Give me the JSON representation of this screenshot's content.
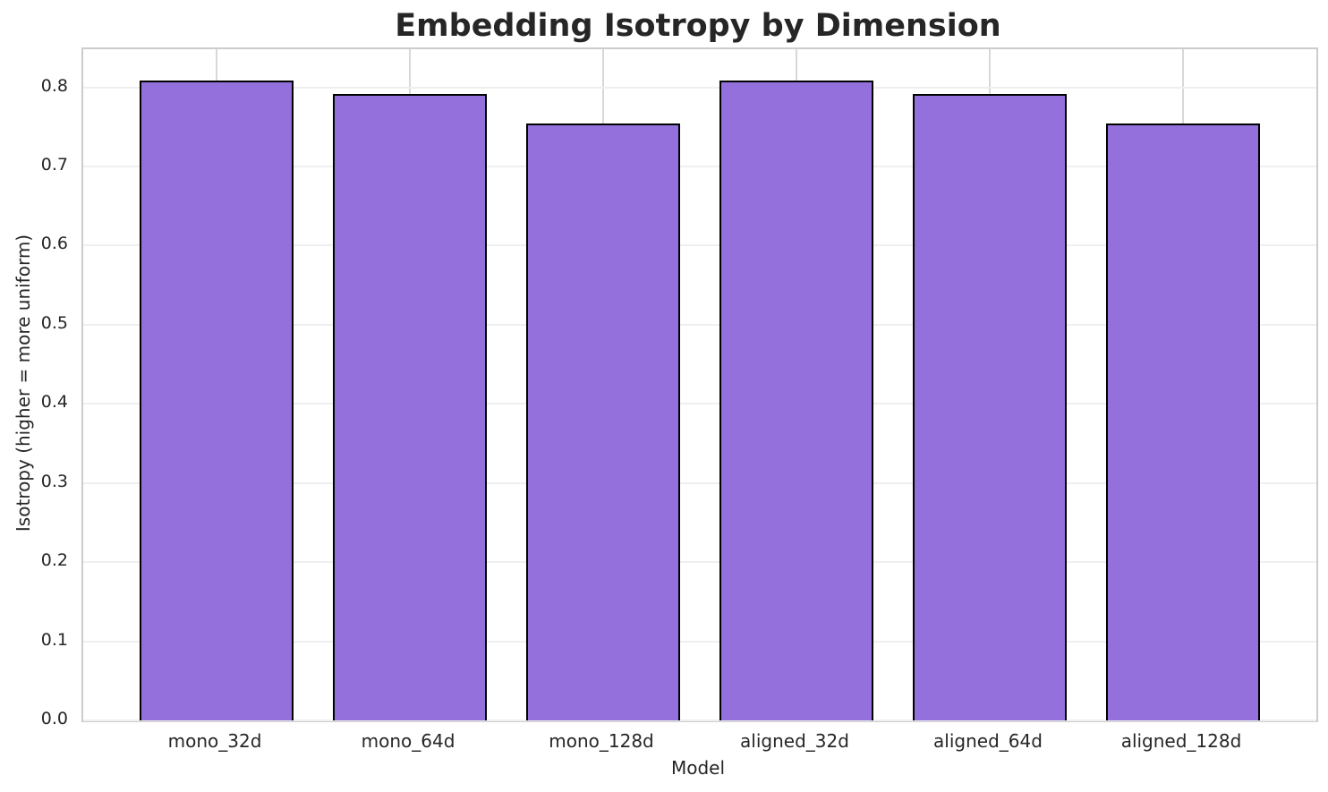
{
  "chart_data": {
    "type": "bar",
    "title": "Embedding Isotropy by Dimension",
    "xlabel": "Model",
    "ylabel": "Isotropy (higher = more uniform)",
    "categories": [
      "mono_32d",
      "mono_64d",
      "mono_128d",
      "aligned_32d",
      "aligned_64d",
      "aligned_128d"
    ],
    "values": [
      0.808,
      0.792,
      0.754,
      0.808,
      0.792,
      0.754
    ],
    "ylim": [
      0.0,
      0.848
    ],
    "yticks": [
      0.0,
      0.1,
      0.2,
      0.3,
      0.4,
      0.5,
      0.6,
      0.7,
      0.8
    ],
    "ytick_labels": [
      "0.0",
      "0.1",
      "0.2",
      "0.3",
      "0.4",
      "0.5",
      "0.6",
      "0.7",
      "0.8"
    ],
    "grid": true,
    "legend": false,
    "bar_color": "#9370DB",
    "bar_edge_color": "#000000",
    "background": "#ffffff"
  },
  "colors": {
    "text": "#262626",
    "grid_horizontal": "#efefef",
    "grid_vertical": "#d8d8d8",
    "spine": "#cccccc"
  }
}
